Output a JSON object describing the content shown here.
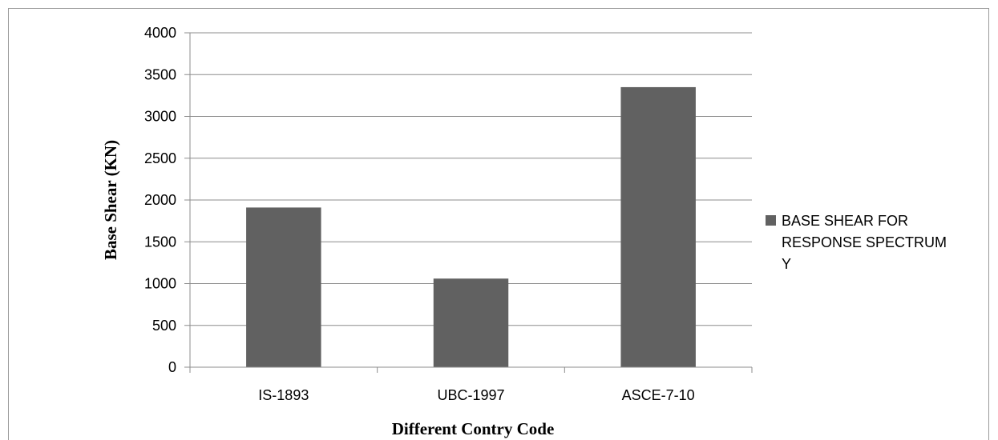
{
  "chart_data": {
    "type": "bar",
    "categories": [
      "IS-1893",
      "UBC-1997",
      "ASCE-7-10"
    ],
    "series": [
      {
        "name": "BASE SHEAR FOR RESPONSE SPECTRUM Y",
        "values": [
          1910,
          1060,
          3350
        ],
        "color": "#616161"
      }
    ],
    "legend_lines": [
      "BASE SHEAR FOR",
      "RESPONSE SPECTRUM",
      "Y"
    ],
    "title": "",
    "xlabel": "Different Contry Code",
    "ylabel": "Base Shear (KN)",
    "ylim": [
      0,
      4000
    ],
    "yticks": [
      0,
      500,
      1000,
      1500,
      2000,
      2500,
      3000,
      3500,
      4000
    ],
    "grid": true,
    "legend_position": "right",
    "colors": {
      "bar": "#616161",
      "grid": "#8c8c8c",
      "frame": "#9a9a9a"
    }
  }
}
